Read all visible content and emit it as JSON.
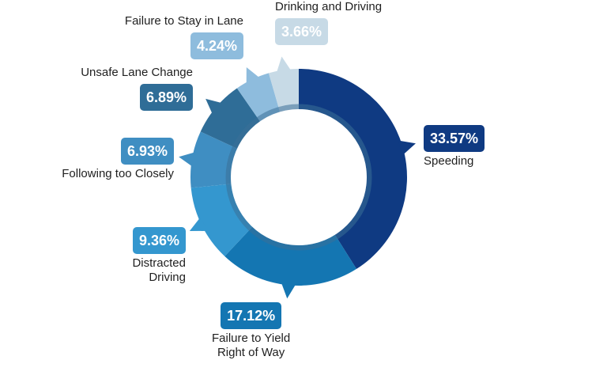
{
  "chart_data": {
    "type": "pie",
    "title": "",
    "categories": [
      "Speeding",
      "Failure to Yield\nRight of Way",
      "Distracted\nDriving",
      "Following too Closely",
      "Unsafe Lane Change",
      "Failure to Stay in Lane",
      "Drinking and Driving"
    ],
    "values": [
      33.57,
      17.12,
      9.36,
      6.93,
      6.89,
      4.24,
      3.66
    ],
    "value_labels": [
      "33.57%",
      "17.12%",
      "9.36%",
      "6.93%",
      "6.89%",
      "4.24%",
      "3.66%"
    ],
    "colors": [
      "#0f3a82",
      "#1476b2",
      "#3497cf",
      "#3f8ec2",
      "#2f6d97",
      "#8ebcdd",
      "#c7dae6"
    ],
    "label_text_colors": [
      "#ffffff",
      "#ffffff",
      "#ffffff",
      "#ffffff",
      "#ffffff",
      "#ffffff",
      "#ffffff"
    ],
    "inner_ring_color": "#3a6f98",
    "legend": "none",
    "donut": true
  }
}
